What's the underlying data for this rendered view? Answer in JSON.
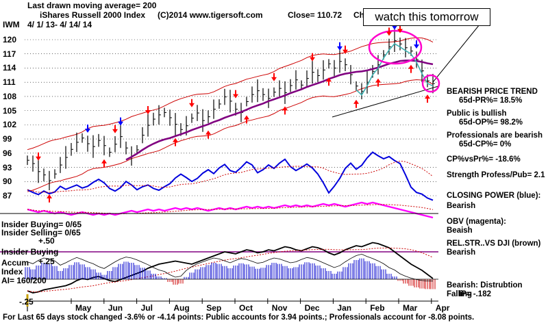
{
  "header": {
    "last_ma": "Last drawn moving average= 200",
    "ticker": "IWM",
    "title": "iShares Russell 2000 Index",
    "copyright": "(C)2014 www.tigersoft.com",
    "close": "Close=  110.72",
    "close_tail": "Ch",
    "date_range": "4/ 1/ 13-  4/ 14/ 14",
    "callout": "watch this tomorrow"
  },
  "left_labels": {
    "insider_buying_1": "Insider Buying= 0/65",
    "insider_selling": "Insider Selling= 0/65",
    "plus_50": "+.50",
    "insider_buying_2": "Insider Buying",
    "accum_label": "Accum",
    "plus_25": "+.25",
    "index_label": "Index",
    "ai_value": "AI= 160/200",
    "minus_25": "-.25"
  },
  "panel": [
    {
      "text": "BEARISH PRICE TREND",
      "indent": false
    },
    {
      "text": "65d-PR%= 18.5%",
      "indent": true
    },
    {
      "text": "Public is bullish",
      "indent": false
    },
    {
      "text": "65d-OP%= 98.2%",
      "indent": true
    },
    {
      "text": "Professionals are bearish",
      "indent": false
    },
    {
      "text": "65d-CP%= 0%",
      "indent": true
    },
    {
      "text": "CP%vsPr%= -18.6%",
      "indent": false
    },
    {
      "text": "Strength Profess/Pub= 2.1",
      "indent": false
    },
    {
      "text": "CLOSING POWER (blue):",
      "indent": false
    },
    {
      "text": "Bearish",
      "indent": false
    },
    {
      "text": "OBV (magenta):",
      "indent": false
    },
    {
      "text": "Beaish",
      "indent": false
    },
    {
      "text": "REL.STR..VS DJI (brown)",
      "indent": false
    },
    {
      "text": "Bearish",
      "indent": false
    },
    {
      "text": "Bearish: Distrubtion Falling",
      "indent": false
    },
    {
      "text": "IP= -.182",
      "indent": true
    }
  ],
  "footer": "For Last 65 days stock changed -3.6% or -4.14 points:  Public accounts for  3.94 points.;  Professionals account for -8.08 points.",
  "colors": {
    "price": "#000000",
    "band": "#cc0000",
    "ma_long": "#800080",
    "ma_short": "#3cb0b0",
    "closing_power": "#0000dd",
    "obv": "#ff00ff",
    "rel_str": "#000000",
    "accum_pos": "#0000cc",
    "accum_neg": "#cc0000",
    "buy_arrow": "#ff0000",
    "sell_arrow": "#ff0000",
    "blue_arrow": "#0000ff",
    "callout_circle": "#ff00cc"
  },
  "chart_data": {
    "type": "line",
    "y_ticks": [
      120,
      117,
      114,
      111,
      108,
      105,
      102,
      99,
      96,
      93,
      90,
      87
    ],
    "ylim": [
      85.5,
      121.5
    ],
    "months": [
      "May",
      "Jun",
      "Jul",
      "Aug",
      "Sep",
      "Oct",
      "Nov",
      "Dec",
      "Jan",
      "Feb",
      "Mar",
      "Apr"
    ],
    "series": [
      {
        "key": "price_close",
        "values": [
          94.5,
          93.8,
          92.1,
          91.4,
          90.2,
          91.6,
          93.5,
          95.1,
          96.8,
          98.3,
          99.2,
          98.0,
          97.4,
          98.7,
          97.6,
          96.2,
          97.9,
          99.5,
          97.1,
          95.4,
          96.7,
          99.8,
          101.9,
          103.2,
          104.1,
          104.6,
          103.5,
          102.1,
          101.0,
          101.8,
          103.4,
          104.5,
          102.9,
          103.7,
          105.3,
          106.4,
          107.9,
          107.0,
          105.3,
          104.6,
          106.9,
          108.4,
          109.2,
          108.4,
          107.6,
          108.9,
          109.7,
          108.8,
          110.3,
          111.5,
          110.4,
          111.8,
          113.1,
          112.4,
          113.6,
          114.9,
          114.0,
          115.4,
          114.7,
          112.6,
          110.2,
          109.1,
          111.0,
          113.3,
          114.7,
          116.8,
          118.5,
          119.8,
          119.1,
          118.3,
          117.6,
          115.8,
          113.4,
          111.3,
          110.72
        ]
      },
      {
        "key": "ma_200",
        "values": [
          null,
          null,
          null,
          null,
          null,
          null,
          null,
          null,
          null,
          null,
          null,
          null,
          null,
          null,
          null,
          null,
          null,
          null,
          94.6,
          95.2,
          95.9,
          96.7,
          97.4,
          98.0,
          98.5,
          98.9,
          99.2,
          99.6,
          100.0,
          100.4,
          100.9,
          101.3,
          101.7,
          102.1,
          102.6,
          103.0,
          103.5,
          103.9,
          104.3,
          104.7,
          105.2,
          105.7,
          106.1,
          106.5,
          107.0,
          107.4,
          107.8,
          108.2,
          108.7,
          109.1,
          109.5,
          110.0,
          110.4,
          110.8,
          111.2,
          111.7,
          112.1,
          112.5,
          112.8,
          113.0,
          113.2,
          113.3,
          113.5,
          113.8,
          114.1,
          114.5,
          114.9,
          115.2,
          115.5,
          115.6,
          115.6,
          115.5,
          115.3,
          115.0,
          114.8
        ]
      },
      {
        "key": "closing_power",
        "values": [
          87.8,
          87.2,
          86.7,
          87.5,
          86.9,
          87.3,
          88.6,
          87.9,
          88.4,
          88.9,
          88.2,
          88.6,
          89.5,
          90.2,
          89.4,
          88.1,
          87.5,
          88.3,
          89.7,
          88.9,
          87.8,
          88.5,
          88.9,
          88.1,
          87.7,
          88.5,
          89.2,
          90.5,
          91.4,
          90.6,
          89.7,
          90.4,
          91.6,
          92.4,
          91.5,
          92.8,
          93.6,
          92.2,
          91.8,
          92.9,
          94.2,
          93.5,
          91.7,
          92.4,
          93.5,
          92.7,
          93.9,
          94.8,
          93.1,
          92.2,
          92.9,
          93.7,
          92.8,
          91.4,
          89.4,
          87.1,
          88.6,
          90.4,
          92.7,
          93.9,
          92.5,
          93.4,
          95.1,
          96.4,
          95.6,
          94.9,
          95.4,
          94.5,
          93.8,
          91.2,
          88.4,
          87.2,
          86.8,
          85.9,
          85.4
        ]
      },
      {
        "key": "obv",
        "values": [
          15,
          14,
          13,
          14,
          13,
          12,
          13,
          12,
          11,
          12,
          13,
          12,
          11,
          12,
          11,
          12,
          11,
          12,
          13,
          14,
          13,
          14,
          15,
          14,
          15,
          14,
          15,
          16,
          15,
          16,
          15,
          16,
          15,
          14,
          15,
          16,
          15,
          16,
          15,
          16,
          17,
          16,
          17,
          16,
          17,
          16,
          17,
          18,
          17,
          18,
          17,
          18,
          17,
          18,
          19,
          18,
          19,
          18,
          17,
          18,
          19,
          20,
          19,
          20,
          19,
          18,
          17,
          16,
          15,
          14,
          13,
          12,
          11,
          10,
          9
        ]
      },
      {
        "key": "rel_str",
        "values": [
          -22,
          -24,
          -23,
          -21,
          -20,
          -19,
          -18,
          -17,
          -15,
          -12,
          -10,
          -11,
          -9,
          -8,
          -10,
          -12,
          -13,
          -11,
          -9,
          -7,
          -5,
          -3,
          0,
          2,
          4,
          5,
          6,
          7,
          6,
          5,
          4,
          6,
          8,
          10,
          12,
          14,
          16,
          15,
          14,
          16,
          18,
          17,
          15,
          16,
          18,
          17,
          19,
          21,
          20,
          18,
          17,
          19,
          21,
          20,
          18,
          15,
          13,
          15,
          18,
          20,
          22,
          21,
          23,
          25,
          24,
          22,
          20,
          16,
          12,
          8,
          4,
          1,
          -2,
          -6,
          -10
        ]
      },
      {
        "key": "accum_index",
        "values": [
          0.22,
          0.18,
          0.25,
          0.3,
          0.28,
          0.24,
          0.15,
          0.2,
          0.26,
          0.31,
          0.27,
          0.22,
          0.18,
          0.12,
          0.08,
          0.15,
          0.22,
          0.28,
          0.32,
          0.3,
          0.26,
          0.21,
          0.16,
          0.1,
          0.05,
          0.02,
          -0.05,
          -0.1,
          -0.08,
          0.04,
          0.12,
          0.18,
          0.22,
          0.26,
          0.3,
          0.28,
          0.24,
          0.2,
          0.25,
          0.29,
          0.27,
          0.23,
          0.19,
          0.21,
          0.26,
          0.3,
          0.28,
          0.24,
          0.2,
          0.22,
          0.27,
          0.31,
          0.29,
          0.25,
          0.2,
          0.15,
          0.1,
          0.14,
          0.22,
          0.29,
          0.35,
          0.38,
          0.33,
          0.29,
          0.24,
          0.18,
          0.1,
          0.05,
          -0.03,
          -0.08,
          -0.12,
          -0.15,
          -0.17,
          -0.18,
          -0.182
        ]
      }
    ]
  }
}
